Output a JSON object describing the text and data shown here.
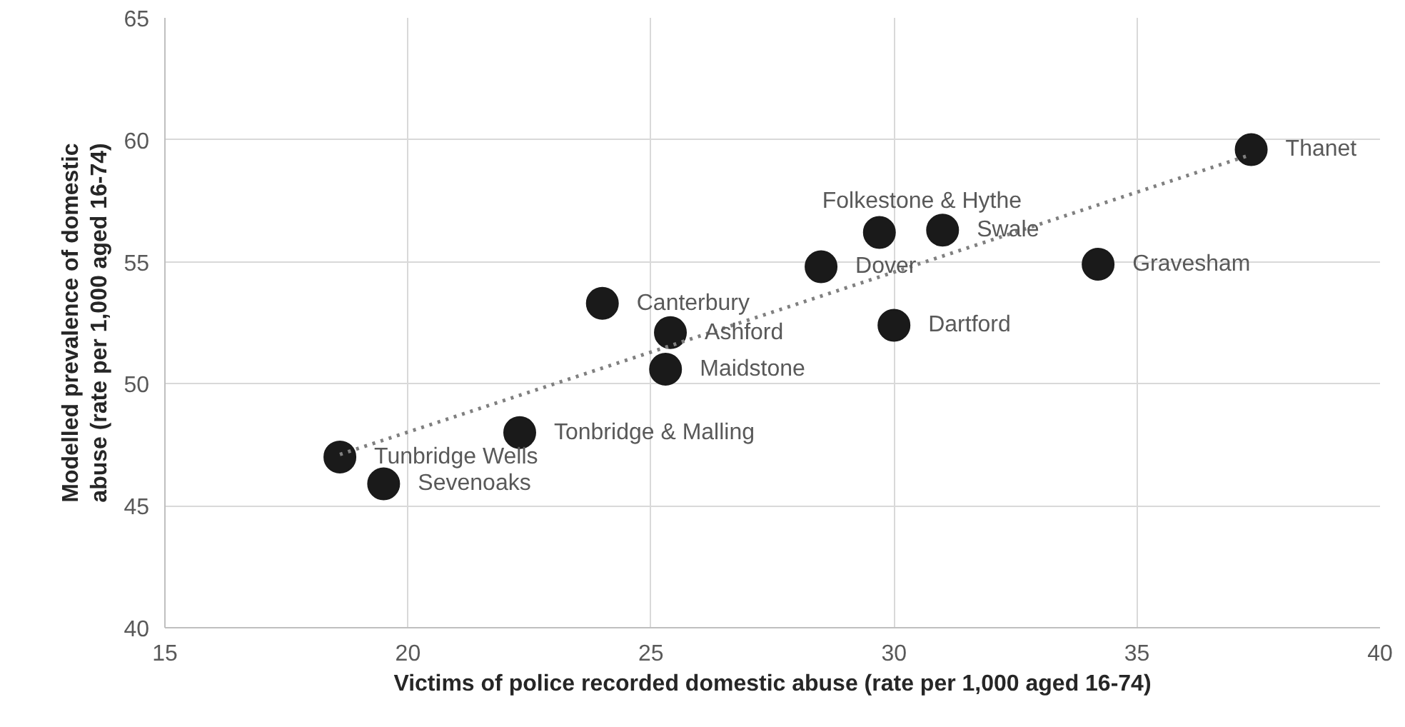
{
  "chart_data": {
    "type": "scatter",
    "xlabel": "Victims of police recorded domestic abuse (rate per 1,000 aged 16-74)",
    "ylabel": "Modelled prevalence of domestic abuse (rate per 1,000 aged 16-74)",
    "xlim": [
      15,
      40
    ],
    "xticks": [
      15,
      20,
      25,
      30,
      35,
      40
    ],
    "ylim": [
      40,
      65
    ],
    "yticks": [
      40,
      45,
      50,
      55,
      60,
      65
    ],
    "grid": true,
    "series": [
      {
        "marker": "circle",
        "color": "#1a1a1a",
        "x": [
          37.35,
          29.7,
          31.0,
          28.5,
          34.2,
          24.0,
          25.4,
          30.0,
          25.3,
          22.3,
          18.6,
          19.5
        ],
        "values": [
          59.6,
          56.2,
          56.3,
          54.8,
          54.9,
          53.3,
          52.1,
          52.4,
          50.6,
          48.0,
          47.0,
          45.9
        ]
      },
      {
        "type": "line",
        "color": "#808080",
        "line_style": "dotted",
        "x": [
          18.6,
          37.35
        ],
        "values": [
          47.1,
          59.4
        ]
      }
    ],
    "annotations": [
      {
        "text": "Thanet",
        "x": 37.35,
        "y": 59.6
      },
      {
        "text": "Folkestone & Hythe",
        "x": 29.7,
        "y": 56.2
      },
      {
        "text": "Swale",
        "x": 31.0,
        "y": 56.3
      },
      {
        "text": "Dover",
        "x": 28.5,
        "y": 54.8
      },
      {
        "text": "Gravesham",
        "x": 34.2,
        "y": 54.9
      },
      {
        "text": "Canterbury",
        "x": 24.0,
        "y": 53.3
      },
      {
        "text": "Ashford",
        "x": 25.4,
        "y": 52.1
      },
      {
        "text": "Dartford",
        "x": 30.0,
        "y": 52.4
      },
      {
        "text": "Maidstone",
        "x": 25.3,
        "y": 50.6
      },
      {
        "text": "Tonbridge & Malling",
        "x": 22.3,
        "y": 48.0
      },
      {
        "text": "Tunbridge Wells",
        "x": 18.6,
        "y": 47.0
      },
      {
        "text": "Sevenoaks",
        "x": 19.5,
        "y": 45.9
      }
    ]
  }
}
